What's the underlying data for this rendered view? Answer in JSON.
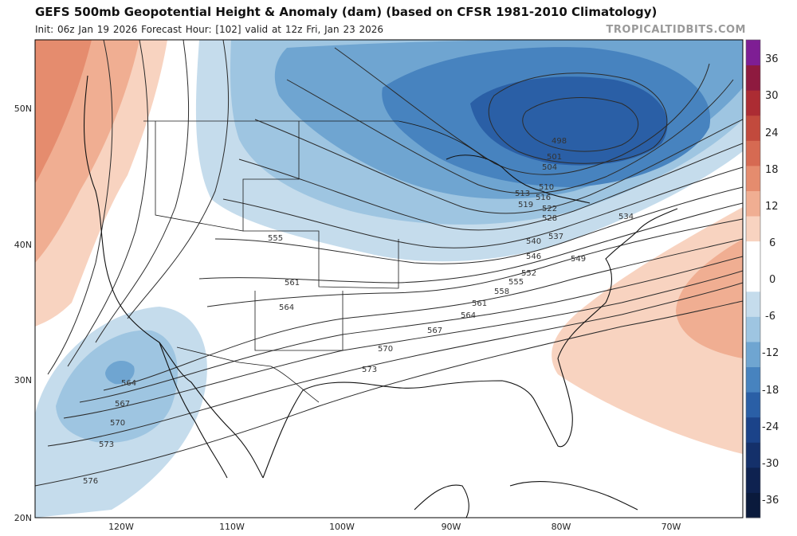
{
  "header": {
    "title": "GEFS 500mb Geopotential Height & Anomaly (dam) (based on CFSR 1981-2010 Climatology)",
    "subtitle": "Init: 06z Jan 19 2026   Forecast Hour: [102]   valid at 12z Fri, Jan 23 2026",
    "brand": "TROPICALTIDBITS.COM"
  },
  "axes": {
    "lat_labels": [
      "50N",
      "40N",
      "30N",
      "20N"
    ],
    "lon_labels": [
      "120W",
      "110W",
      "100W",
      "90W",
      "80W",
      "70W"
    ]
  },
  "colorbar": {
    "ticks": [
      "36",
      "30",
      "24",
      "18",
      "12",
      "6",
      "0",
      "-6",
      "-12",
      "-18",
      "-24",
      "-30",
      "-36"
    ],
    "colors": [
      "#8e1a3f",
      "#ac2c33",
      "#c24a3d",
      "#d66a52",
      "#e58c6e",
      "#f0ae92",
      "#f8d3c0",
      "#ffffff",
      "#c5dcec",
      "#9ec5e1",
      "#6fa5d1",
      "#4783bf",
      "#2a5fa6",
      "#1b4389",
      "#14306a",
      "#0e2250",
      "#0a1a3c",
      "#5d1e77",
      "#7e1e94"
    ]
  },
  "contour_labels": [
    "498",
    "501",
    "504",
    "510",
    "513",
    "516",
    "519",
    "522",
    "528",
    "534",
    "537",
    "540",
    "546",
    "549",
    "552",
    "555",
    "558",
    "561",
    "564",
    "567",
    "570",
    "573",
    "576",
    "555",
    "561",
    "564",
    "564",
    "567",
    "570",
    "573"
  ],
  "map_colors": {
    "warm_light": "#f8d3c0",
    "warm_mid": "#f0ae92",
    "warm_dark": "#e58c6e",
    "cool_light": "#c5dcec",
    "cool_mid": "#9ec5e1",
    "cool_2": "#6fa5d1",
    "cool_3": "#4783bf",
    "cool_4": "#2a5fa6"
  }
}
